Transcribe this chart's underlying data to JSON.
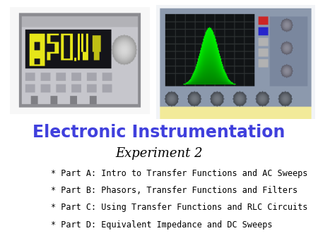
{
  "title": "Electronic Instrumentation",
  "subtitle": "Experiment 2",
  "bullet_points": [
    "* Part A: Intro to Transfer Functions and AC Sweeps",
    "* Part B: Phasors, Transfer Functions and Filters",
    "* Part C: Using Transfer Functions and RLC Circuits",
    "* Part D: Equivalent Impedance and DC Sweeps"
  ],
  "title_color": "#4040dd",
  "subtitle_color": "#000000",
  "bullet_color": "#000000",
  "background_color": "#ffffff",
  "title_fontsize": 17,
  "subtitle_fontsize": 13,
  "bullet_fontsize": 8.5,
  "fig_width": 4.5,
  "fig_height": 3.38,
  "dpi": 100
}
